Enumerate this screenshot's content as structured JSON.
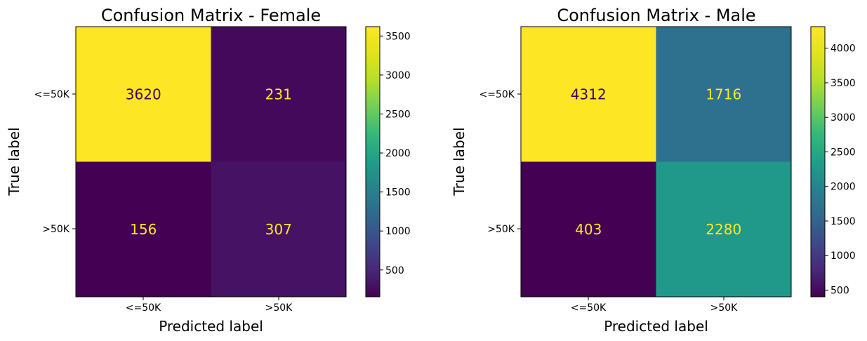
{
  "chart_data": [
    {
      "type": "heatmap",
      "title": "Confusion Matrix - Female",
      "xlabel": "Predicted label",
      "ylabel": "True label",
      "x_categories": [
        "<=50K",
        ">50K"
      ],
      "y_categories": [
        "<=50K",
        ">50K"
      ],
      "values": [
        [
          3620,
          231
        ],
        [
          156,
          307
        ]
      ],
      "colormap": "viridis",
      "vmin": 156,
      "vmax": 3620,
      "colorbar_ticks": [
        500,
        1000,
        1500,
        2000,
        2500,
        3000,
        3500
      ]
    },
    {
      "type": "heatmap",
      "title": "Confusion Matrix - Male",
      "xlabel": "Predicted label",
      "ylabel": "True label",
      "x_categories": [
        "<=50K",
        ">50K"
      ],
      "y_categories": [
        "<=50K",
        ">50K"
      ],
      "values": [
        [
          4312,
          1716
        ],
        [
          403,
          2280
        ]
      ],
      "colormap": "viridis",
      "vmin": 403,
      "vmax": 4312,
      "colorbar_ticks": [
        500,
        1000,
        1500,
        2000,
        2500,
        3000,
        3500,
        4000
      ]
    }
  ],
  "colors": {
    "text_on_dark": "#fde725",
    "text_on_light": "#440154"
  }
}
